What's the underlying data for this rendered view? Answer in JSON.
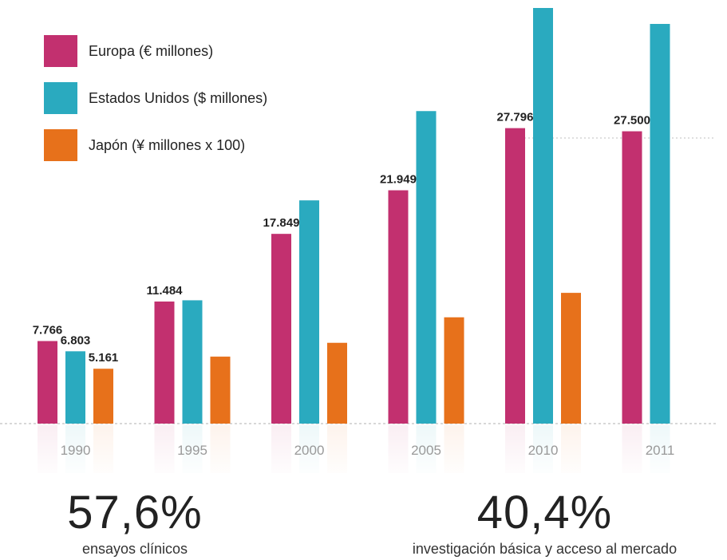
{
  "chart_data": {
    "type": "bar",
    "categories": [
      "1990",
      "1995",
      "2000",
      "2005",
      "2010",
      "2011"
    ],
    "series": [
      {
        "name": "Europa (€ millones)",
        "color": "#c2306f",
        "values": [
          7766,
          11484,
          17849,
          21949,
          27796,
          27500
        ],
        "labels": [
          "7.766",
          "11.484",
          "17.849",
          "21.949",
          "27.796",
          "27.500"
        ]
      },
      {
        "name": "Estados Unidos ($ millones)",
        "color": "#2aaabf",
        "values": [
          6803,
          11600,
          21000,
          29400,
          39100,
          37600
        ],
        "labels": [
          "6.803",
          "",
          "",
          "",
          "",
          ""
        ]
      },
      {
        "name": "Japón (¥ millones x 100)",
        "color": "#e7711b",
        "values": [
          5161,
          6300,
          7600,
          10000,
          12300,
          null
        ],
        "labels": [
          "5.161",
          "",
          "",
          "",
          "",
          ""
        ]
      }
    ],
    "ylim": [
      0,
      39100
    ],
    "grid": false,
    "legend": "top-left"
  },
  "legend": [
    {
      "label": "Europa (€ millones)",
      "color": "#c2306f"
    },
    {
      "label": "Estados Unidos ($ millones)",
      "color": "#2aaabf"
    },
    {
      "label": "Japón (¥ millones x 100)",
      "color": "#e7711b"
    }
  ],
  "stats": {
    "left": {
      "value": "57,6%",
      "caption": "ensayos clínicos"
    },
    "right": {
      "value": "40,4%",
      "caption": "investigación básica y acceso al mercado"
    }
  }
}
